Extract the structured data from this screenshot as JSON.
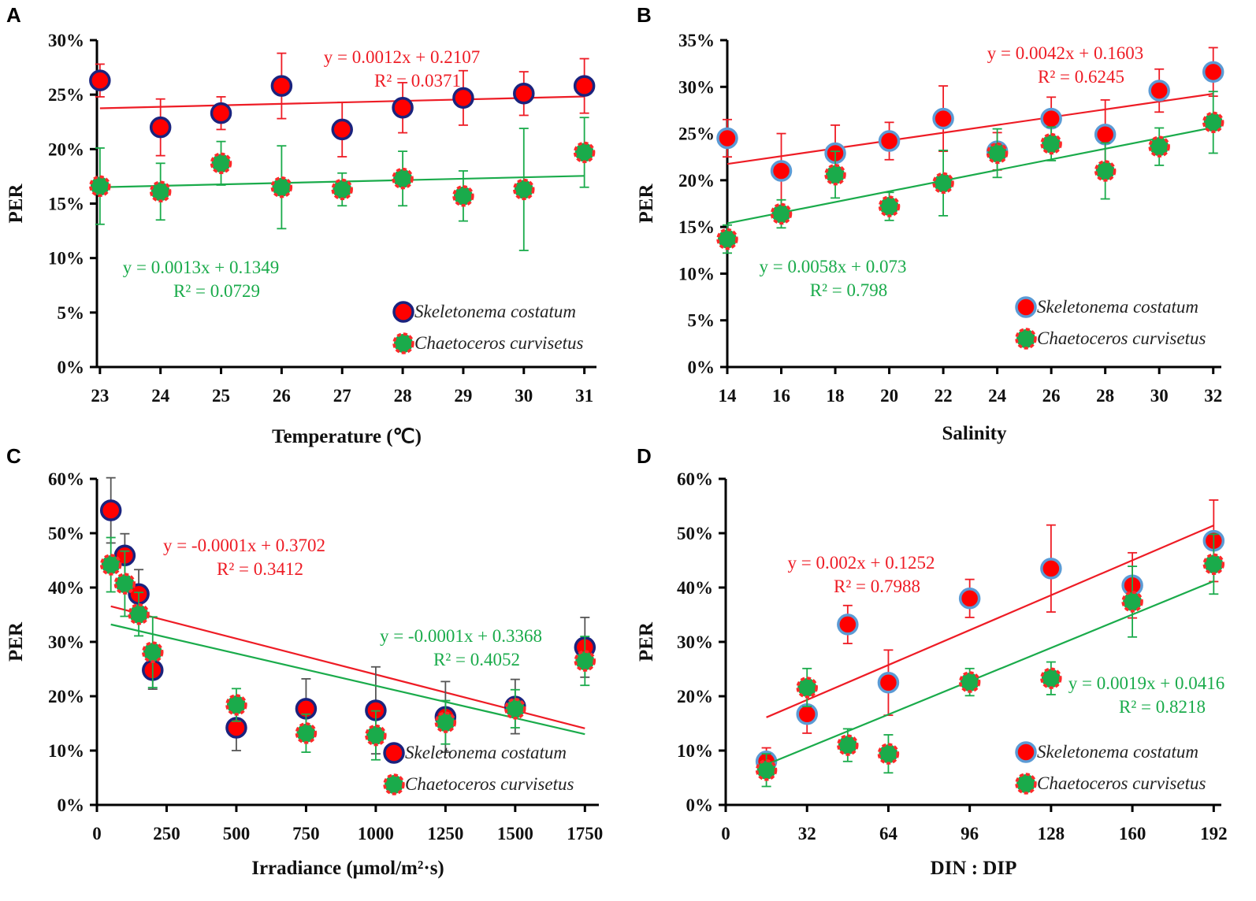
{
  "chart_data": [
    {
      "panel": "A",
      "type": "scatter",
      "xlabel": "Temperature (℃)",
      "ylabel": "PER",
      "x": [
        23,
        24,
        25,
        26,
        27,
        28,
        29,
        30,
        31
      ],
      "xticks": [
        23,
        24,
        25,
        26,
        27,
        28,
        29,
        30,
        31
      ],
      "xlim": [
        22.95,
        31.2
      ],
      "ylim": [
        0,
        30
      ],
      "ystep": 5,
      "series": [
        {
          "name": "Skeletonema costatum",
          "values": [
            26.3,
            22.0,
            23.3,
            25.8,
            21.8,
            23.8,
            24.7,
            25.1,
            25.8
          ],
          "err": [
            1.5,
            2.6,
            1.5,
            3.0,
            2.5,
            2.3,
            2.5,
            2.0,
            2.5
          ],
          "equation": "y = 0.0012x + 0.2107",
          "r2": "R² = 0.0371",
          "color": "#ee1c25"
        },
        {
          "name": "Chaetoceros curvisetus",
          "values": [
            16.6,
            16.1,
            18.7,
            16.5,
            16.3,
            17.3,
            15.7,
            16.3,
            19.7
          ],
          "err": [
            3.5,
            2.6,
            2.0,
            3.8,
            1.5,
            2.5,
            2.3,
            5.6,
            3.2
          ],
          "equation": "y = 0.0013x + 0.1349",
          "r2": "R² = 0.0729",
          "color": "#1aab4b"
        }
      ]
    },
    {
      "panel": "B",
      "type": "scatter",
      "xlabel": "Salinity",
      "ylabel": "PER",
      "x": [
        14,
        16,
        18,
        20,
        22,
        24,
        26,
        28,
        30,
        32
      ],
      "xticks": [
        14,
        16,
        18,
        20,
        22,
        24,
        26,
        28,
        30,
        32
      ],
      "xlim": [
        14,
        32.3
      ],
      "ylim": [
        0,
        35
      ],
      "ystep": 5,
      "series": [
        {
          "name": "Skeletonema costatum",
          "values": [
            24.5,
            21.0,
            22.9,
            24.2,
            26.6,
            23.1,
            26.6,
            24.9,
            29.6,
            31.6
          ],
          "err": [
            2,
            4,
            3,
            2,
            3.5,
            2,
            2.3,
            3.7,
            2.3,
            2.6
          ],
          "equation": "y = 0.0042x + 0.1603",
          "r2": "R² = 0.6245",
          "color": "#ee1c25"
        },
        {
          "name": "Chaetoceros curvisetus",
          "values": [
            13.7,
            16.4,
            20.6,
            17.2,
            19.7,
            22.9,
            23.9,
            21.0,
            23.6,
            26.2
          ],
          "err": [
            1.5,
            1.5,
            2.5,
            1.5,
            3.5,
            2.6,
            1.8,
            3,
            2,
            3.3
          ],
          "equation": "y = 0.0058x + 0.073",
          "r2": "R² = 0.798",
          "color": "#1aab4b"
        }
      ]
    },
    {
      "panel": "C",
      "type": "scatter",
      "xlabel": "Irradiance (μmol/m²·s)",
      "ylabel": "PER",
      "x": [
        50,
        100,
        150,
        200,
        500,
        750,
        1000,
        1250,
        1500,
        1750
      ],
      "xticks": [
        0,
        250,
        500,
        750,
        1000,
        1250,
        1500,
        1750
      ],
      "xlim": [
        0,
        1800
      ],
      "ylim": [
        0,
        60
      ],
      "ystep": 10,
      "series": [
        {
          "name": "Skeletonema costatum",
          "values": [
            54.2,
            45.9,
            38.8,
            24.8,
            14.2,
            17.7,
            17.4,
            16.2,
            18.1,
            29.0
          ],
          "err": [
            6,
            4,
            4.5,
            3.5,
            4.2,
            5.5,
            8,
            6.5,
            5,
            5.5
          ],
          "equation": "y = -0.0001x + 0.3702",
          "r2": "R² = 0.3412",
          "color": "#ee1c25"
        },
        {
          "name": "Chaetoceros curvisetus",
          "values": [
            44.2,
            40.7,
            35.1,
            28.1,
            18.4,
            13.2,
            12.8,
            15.2,
            17.7,
            26.5
          ],
          "err": [
            5,
            6,
            4,
            6.5,
            3,
            3.5,
            4.5,
            4,
            3.5,
            4.5
          ],
          "equation": "y = -0.0001x + 0.3368",
          "r2": "R² = 0.4052",
          "color": "#1aab4b"
        }
      ]
    },
    {
      "panel": "D",
      "type": "scatter",
      "xlabel": "DIN : DIP",
      "ylabel": "PER",
      "x": [
        16,
        32,
        48,
        64,
        96,
        128,
        160,
        192
      ],
      "xticks": [
        0,
        32,
        64,
        96,
        128,
        160,
        192
      ],
      "xlim": [
        0,
        195
      ],
      "ylim": [
        0,
        60
      ],
      "ystep": 10,
      "series": [
        {
          "name": "Skeletonema costatum",
          "values": [
            8.0,
            16.7,
            33.2,
            22.5,
            38.0,
            43.5,
            40.4,
            48.6
          ],
          "err": [
            2.5,
            3.5,
            3.5,
            6,
            3.5,
            8,
            6,
            7.5
          ],
          "equation": "y = 0.002x + 0.1252",
          "r2": "R² = 0.7988",
          "color": "#ee1c25"
        },
        {
          "name": "Chaetoceros curvisetus",
          "values": [
            6.4,
            21.6,
            11.0,
            9.4,
            22.6,
            23.3,
            37.4,
            44.3
          ],
          "err": [
            3,
            3.5,
            3,
            3.5,
            2.5,
            3,
            6.5,
            5.5
          ],
          "equation": "y = 0.0019x + 0.0416",
          "r2": "R² = 0.8218",
          "color": "#1aab4b"
        }
      ]
    }
  ]
}
